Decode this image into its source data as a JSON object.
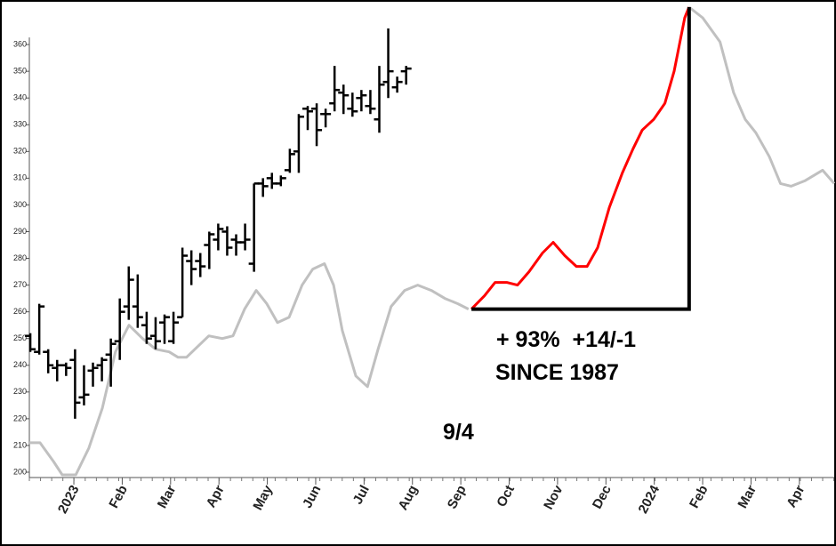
{
  "chart_data": {
    "type": "ohlc",
    "xlim": [
      -0.92,
      15.72
    ],
    "ylim": [
      198,
      375
    ],
    "yticks": [
      200,
      210,
      220,
      230,
      240,
      250,
      260,
      270,
      280,
      290,
      300,
      310,
      320,
      330,
      340,
      350,
      360
    ],
    "xticks": [
      {
        "value": 0,
        "label": "2023"
      },
      {
        "value": 1,
        "label": "Feb"
      },
      {
        "value": 2,
        "label": "Mar"
      },
      {
        "value": 3,
        "label": "Apr"
      },
      {
        "value": 4,
        "label": "May"
      },
      {
        "value": 5,
        "label": "Jun"
      },
      {
        "value": 6,
        "label": "Jul"
      },
      {
        "value": 7,
        "label": "Aug"
      },
      {
        "value": 8,
        "label": "Sep"
      },
      {
        "value": 9,
        "label": "Oct"
      },
      {
        "value": 10,
        "label": "Nov"
      },
      {
        "value": 11,
        "label": "Dec"
      },
      {
        "value": 12,
        "label": "2024"
      },
      {
        "value": 13,
        "label": "Feb"
      },
      {
        "value": 14,
        "label": "Mar"
      },
      {
        "value": 15,
        "label": "Apr"
      }
    ],
    "year_tick_color": "#8b0000",
    "ohlc": {
      "color": "#000000",
      "x": [
        -0.9,
        -0.715,
        -0.53,
        -0.345,
        -0.16,
        0.025,
        0.21,
        0.395,
        0.58,
        0.765,
        0.95,
        1.135,
        1.32,
        1.505,
        1.69,
        1.875,
        2.06,
        2.245,
        2.43,
        2.615,
        2.8,
        2.985,
        3.17,
        3.355,
        3.54,
        3.725,
        3.91,
        4.095,
        4.28,
        4.465,
        4.65,
        4.835,
        5.02,
        5.205,
        5.39,
        5.575,
        5.76,
        5.945,
        6.13,
        6.315,
        6.5,
        6.685,
        6.87
      ],
      "open": [
        251,
        245,
        245,
        239,
        240,
        242,
        228,
        238,
        240,
        244,
        249,
        262,
        262,
        255,
        251,
        256,
        249,
        258,
        279,
        279,
        285,
        287,
        290,
        287,
        286,
        278,
        308,
        310,
        308,
        313,
        320,
        336,
        336,
        334,
        338,
        342,
        336,
        340,
        337,
        332,
        346,
        344,
        350
      ],
      "high": [
        252,
        263,
        246,
        242,
        241,
        246,
        240,
        241,
        243,
        250,
        265,
        277,
        274,
        260,
        258,
        259,
        260,
        284,
        283,
        282,
        290,
        293,
        292,
        289,
        293,
        308,
        310,
        312,
        311,
        321,
        334,
        337,
        338,
        336,
        352,
        345,
        342,
        343,
        343,
        352,
        366,
        348,
        352
      ],
      "low": [
        245,
        244,
        237,
        234,
        236,
        220,
        225,
        232,
        234,
        232,
        242,
        257,
        254,
        248,
        246,
        248,
        248,
        258,
        270,
        273,
        276,
        283,
        281,
        281,
        283,
        275,
        303,
        306,
        307,
        312,
        312,
        328,
        322,
        329,
        335,
        334,
        333,
        335,
        334,
        327,
        340,
        342,
        345
      ],
      "close": [
        246,
        262,
        240,
        240,
        239,
        226,
        229,
        239,
        242,
        248,
        260,
        272,
        258,
        250,
        249,
        258,
        256,
        281,
        276,
        277,
        289,
        291,
        284,
        286,
        287,
        308,
        307,
        308,
        310,
        319,
        333,
        335,
        328,
        334,
        343,
        341,
        335,
        341,
        336,
        345,
        350,
        346,
        351
      ]
    },
    "series": [
      {
        "color": "#c0c0c0",
        "x": [
          -0.92,
          -0.7,
          -0.42,
          -0.24,
          0.04,
          0.31,
          0.59,
          0.86,
          1.14,
          1.42,
          1.69,
          1.97,
          2.15,
          2.33,
          2.56,
          2.79,
          3.07,
          3.29,
          3.53,
          3.77,
          3.99,
          4.21,
          4.45,
          4.72,
          4.94,
          5.18,
          5.37,
          5.55,
          5.83,
          6.07,
          6.29,
          6.56,
          6.84,
          7.11,
          7.39,
          7.67,
          7.94,
          8.16
        ],
        "values": [
          211,
          211,
          204,
          199,
          199,
          209,
          224,
          245,
          255,
          250,
          246,
          245,
          243,
          243,
          247,
          251,
          250,
          251,
          261,
          268,
          263,
          256,
          258,
          270,
          276,
          278,
          270,
          253,
          236,
          232,
          246,
          262,
          268,
          270,
          268,
          265,
          263,
          261
        ]
      },
      {
        "color": "#ff0000",
        "x": [
          8.22,
          8.49,
          8.71,
          8.95,
          9.17,
          9.41,
          9.69,
          9.91,
          10.15,
          10.39,
          10.61,
          10.83,
          11.07,
          11.34,
          11.56,
          11.75,
          11.99,
          12.22,
          12.41,
          12.63,
          12.72
        ],
        "values": [
          261,
          266,
          271,
          271,
          270,
          275,
          282,
          286,
          281,
          277,
          277,
          284,
          299,
          312,
          321,
          328,
          332,
          338,
          350,
          370,
          374
        ]
      },
      {
        "color": "#c0c0c0",
        "x": [
          12.72,
          13.0,
          13.36,
          13.64,
          13.88,
          14.1,
          14.38,
          14.61,
          14.83,
          15.11,
          15.48,
          15.72
        ],
        "values": [
          374,
          370,
          361,
          342,
          332,
          327,
          318,
          308,
          307,
          309,
          313,
          308
        ]
      }
    ],
    "annotations": [
      "+ 93%  +14/-1",
      "SINCE 1987",
      "9/4"
    ]
  }
}
